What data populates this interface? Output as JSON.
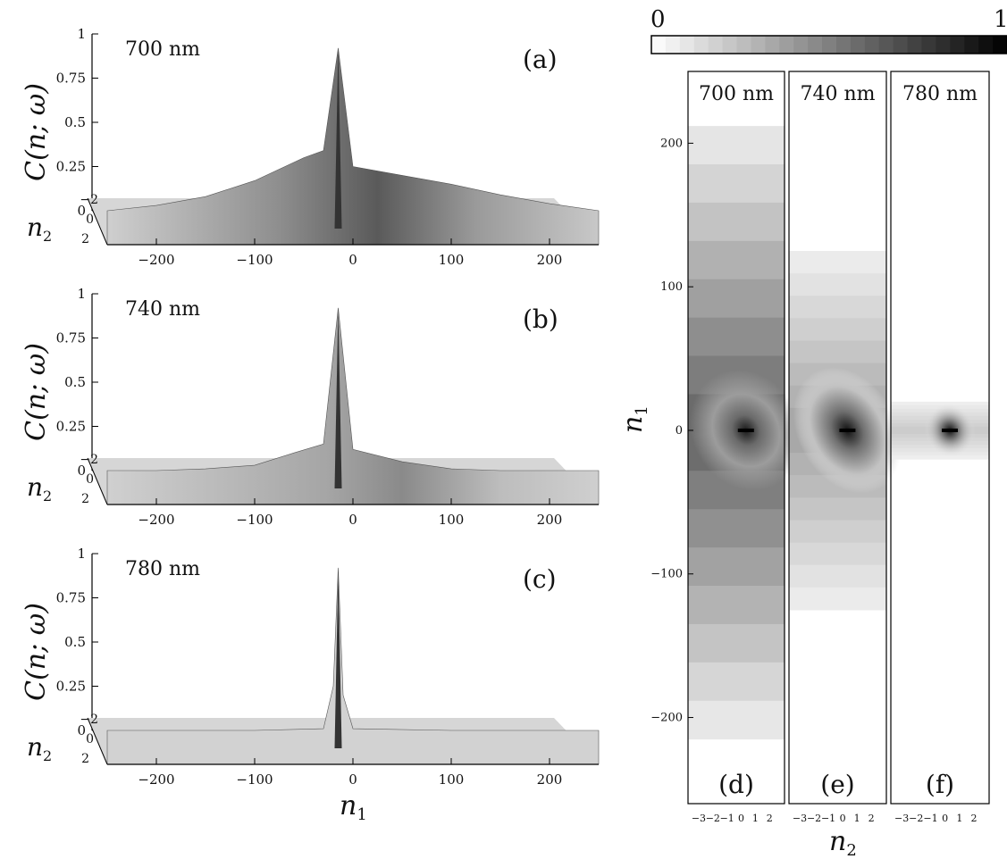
{
  "colorbar": {
    "min_label": "0",
    "max_label": "1"
  },
  "surface_panels": [
    {
      "wavelength": "700 nm",
      "panel_label": "(a)",
      "y_axis_label": "C(n; ω)",
      "n2_label": "n",
      "y_ticks": [
        "0",
        "0.25",
        "0.5",
        "0.75",
        "1"
      ],
      "n2_ticks": [
        "−2",
        "0",
        "2"
      ],
      "x_ticks": [
        "−200",
        "−100",
        "0",
        "100",
        "200"
      ]
    },
    {
      "wavelength": "740 nm",
      "panel_label": "(b)",
      "y_axis_label": "C(n; ω)",
      "n2_label": "n",
      "y_ticks": [
        "0",
        "0.25",
        "0.5",
        "0.75",
        "1"
      ],
      "n2_ticks": [
        "−2",
        "0",
        "2"
      ],
      "x_ticks": [
        "−200",
        "−100",
        "0",
        "100",
        "200"
      ]
    },
    {
      "wavelength": "780 nm",
      "panel_label": "(c)",
      "y_axis_label": "C(n; ω)",
      "n2_label": "n",
      "y_ticks": [
        "0",
        "0.25",
        "0.5",
        "0.75",
        "1"
      ],
      "n2_ticks": [
        "−2",
        "0",
        "2"
      ],
      "x_ticks": [
        "−200",
        "−100",
        "0",
        "100",
        "200"
      ]
    }
  ],
  "surface_x_label": "n",
  "density_panels": [
    {
      "wavelength": "700 nm",
      "panel_label": "(d)",
      "n2_ticks": [
        "−3",
        "−2",
        "−1",
        "0",
        "1",
        "2"
      ]
    },
    {
      "wavelength": "740 nm",
      "panel_label": "(e)",
      "n2_ticks": [
        "−3",
        "−2",
        "−1",
        "0",
        "1",
        "2"
      ]
    },
    {
      "wavelength": "780 nm",
      "panel_label": "(f)",
      "n2_ticks": [
        "−3",
        "−2",
        "−1",
        "0",
        "1",
        "2"
      ]
    }
  ],
  "density_y_label": "n",
  "density_y_ticks": [
    "200",
    "100",
    "0",
    "−100",
    "−200"
  ],
  "density_x_label": "n",
  "chart_data": [
    {
      "type": "area",
      "panel": "(a)",
      "wavelength": "700 nm",
      "x": [
        -250,
        -200,
        -150,
        -100,
        -50,
        -30,
        -15,
        0,
        50,
        100,
        150,
        200,
        250
      ],
      "y": [
        0,
        0.03,
        0.08,
        0.17,
        0.3,
        0.34,
        0.92,
        0.25,
        0.2,
        0.15,
        0.09,
        0.04,
        0
      ],
      "xlabel": "n1",
      "ylabel": "C(n; ω)",
      "ylim": [
        0,
        1
      ],
      "xlim": [
        -250,
        250
      ]
    },
    {
      "type": "area",
      "panel": "(b)",
      "wavelength": "740 nm",
      "x": [
        -250,
        -200,
        -150,
        -100,
        -60,
        -30,
        -15,
        0,
        50,
        100,
        150,
        200,
        250
      ],
      "y": [
        0,
        0.0,
        0.01,
        0.03,
        0.1,
        0.15,
        0.92,
        0.12,
        0.05,
        0.01,
        0.0,
        0.0,
        0
      ],
      "xlabel": "n1",
      "ylabel": "C(n; ω)",
      "ylim": [
        0,
        1
      ],
      "xlim": [
        -250,
        250
      ]
    },
    {
      "type": "area",
      "panel": "(c)",
      "wavelength": "780 nm",
      "x": [
        -250,
        -200,
        -100,
        -30,
        -20,
        -15,
        -10,
        0,
        100,
        200,
        250
      ],
      "y": [
        0,
        0,
        0,
        0.01,
        0.25,
        0.92,
        0.2,
        0.01,
        0,
        0,
        0
      ],
      "xlabel": "n1",
      "ylabel": "C(n; ω)",
      "ylim": [
        0,
        1
      ],
      "xlim": [
        -250,
        250
      ]
    },
    {
      "type": "heatmap",
      "panel": "(d)",
      "wavelength": "700 nm",
      "xlabel": "n2",
      "ylabel": "n1",
      "ylim": [
        -260,
        250
      ],
      "xlim": [
        -3,
        2.5
      ],
      "n1_extent": [
        -215,
        212
      ],
      "peak": {
        "n1": 0,
        "n2": 0,
        "value": 1
      }
    },
    {
      "type": "heatmap",
      "panel": "(e)",
      "wavelength": "740 nm",
      "xlabel": "n2",
      "ylabel": "n1",
      "ylim": [
        -260,
        250
      ],
      "xlim": [
        -3,
        2.5
      ],
      "n1_extent": [
        -125,
        125
      ],
      "peak": {
        "n1": 0,
        "n2": 0,
        "value": 1
      }
    },
    {
      "type": "heatmap",
      "panel": "(f)",
      "wavelength": "780 nm",
      "xlabel": "n2",
      "ylabel": "n1",
      "ylim": [
        -260,
        250
      ],
      "xlim": [
        -3,
        2.5
      ],
      "n1_extent": [
        -20,
        20
      ],
      "peak": {
        "n1": 0,
        "n2": 0,
        "value": 1
      }
    }
  ]
}
